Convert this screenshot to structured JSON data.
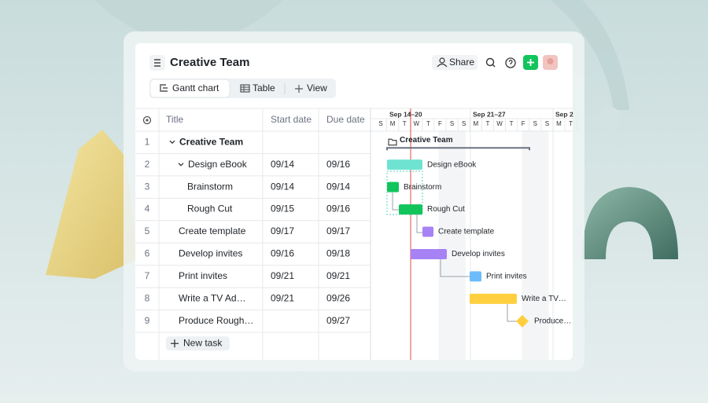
{
  "header": {
    "title": "Creative Team",
    "share": "Share"
  },
  "tabs": [
    "Gantt chart",
    "Table",
    "View"
  ],
  "table": {
    "columns": [
      "Title",
      "Start date",
      "Due date"
    ],
    "rows": [
      {
        "id": "1",
        "title": "Creative Team"
      },
      {
        "id": "2",
        "title": "Design eBook",
        "start": "09/14",
        "due": "09/16"
      },
      {
        "id": "3",
        "title": "Brainstorm",
        "start": "09/14",
        "due": "09/14"
      },
      {
        "id": "4",
        "title": "Rough Cut",
        "start": "09/15",
        "due": "09/16"
      },
      {
        "id": "5",
        "title": "Create template",
        "start": "09/17",
        "due": "09/17"
      },
      {
        "id": "6",
        "title": "Develop invites",
        "start": "09/16",
        "due": "09/18"
      },
      {
        "id": "7",
        "title": "Print invites",
        "start": "09/21",
        "due": "09/21"
      },
      {
        "id": "8",
        "title": "Write a TV Ad…",
        "start": "09/21",
        "due": "09/26"
      },
      {
        "id": "9",
        "title": "Produce Rough…",
        "due": "09/27"
      }
    ],
    "new_task": "New task"
  },
  "gantt": {
    "weeks": [
      "Sep 14–20",
      "Sep 21–27",
      "Sep 2"
    ],
    "days": [
      "S",
      "M",
      "T",
      "W",
      "T",
      "F",
      "S",
      "S",
      "M",
      "T",
      "W",
      "T",
      "F",
      "S",
      "S",
      "M",
      "T"
    ],
    "bars": [
      "Creative Team",
      "Design eBook",
      "Brainstorm",
      "Rough Cut",
      "Create template",
      "Develop invites",
      "Print invites",
      "Write a TV…",
      "Produce…"
    ]
  }
}
